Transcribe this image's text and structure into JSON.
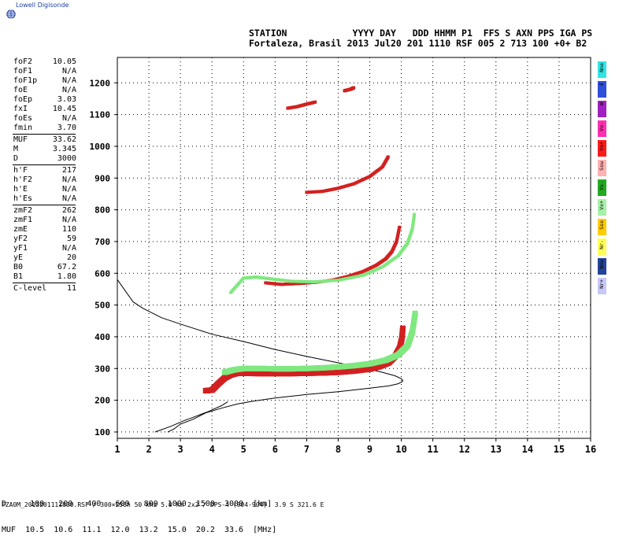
{
  "logo": {
    "text": "Lowell Digisonde",
    "icon": "globe-icon"
  },
  "header": {
    "line1": "STATION            YYYY DAY   DDD HHMM P1  FFS S AXN PPS IGA PS",
    "line2": "Fortaleza, Brasil 2013 Jul20 201 1110 RSF 005 2 713 100 +0+ B2"
  },
  "params": [
    {
      "label": "foF2",
      "value": "10.05"
    },
    {
      "label": "foF1",
      "value": "N/A"
    },
    {
      "label": "foF1p",
      "value": "N/A"
    },
    {
      "label": "foE",
      "value": "N/A"
    },
    {
      "label": "foEp",
      "value": "3.03"
    },
    {
      "label": "fxI",
      "value": "10.45"
    },
    {
      "label": "foEs",
      "value": "N/A"
    },
    {
      "label": "fmin",
      "value": "3.70"
    },
    {
      "sep": true
    },
    {
      "label": "MUF",
      "value": "33.62"
    },
    {
      "label": "M",
      "value": "3.345"
    },
    {
      "label": "D",
      "value": "3000"
    },
    {
      "sep": true
    },
    {
      "label": "h'F",
      "value": "217"
    },
    {
      "label": "h'F2",
      "value": "N/A"
    },
    {
      "label": "h'E",
      "value": "N/A"
    },
    {
      "label": "h'Es",
      "value": "N/A"
    },
    {
      "sep": true
    },
    {
      "label": "zmF2",
      "value": "262"
    },
    {
      "label": "zmF1",
      "value": "N/A"
    },
    {
      "label": "zmE",
      "value": "110"
    },
    {
      "label": "yF2",
      "value": "59"
    },
    {
      "label": "yF1",
      "value": "N/A"
    },
    {
      "label": "yE",
      "value": "20"
    },
    {
      "label": "B0",
      "value": "67.2"
    },
    {
      "label": "B1",
      "value": "1.80"
    },
    {
      "sep": true
    },
    {
      "label": "C-level",
      "value": "11"
    }
  ],
  "legend": [
    {
      "label": "Nne",
      "color": "#33e3e3"
    },
    {
      "label": "E",
      "color": "#2f4fd9"
    },
    {
      "label": "W",
      "color": "#a020c0"
    },
    {
      "label": "Vo-",
      "color": "#ff2fb0"
    },
    {
      "label": "Vo+",
      "color": "#ff1a1a"
    },
    {
      "label": "Ssw",
      "color": "#ffb0b0"
    },
    {
      "label": "Vx-",
      "color": "#22aa22"
    },
    {
      "label": "Vx+",
      "color": "#a8f0a8"
    },
    {
      "label": "Sse",
      "color": "#ffcc00"
    },
    {
      "label": "Nr-",
      "color": "#ffff55"
    },
    {
      "label": "Nnw",
      "color": "#224499"
    },
    {
      "label": "Nr+",
      "color": "#c8c8f8"
    }
  ],
  "chart_data": {
    "type": "scatter",
    "xlim": [
      1,
      16
    ],
    "ylim": [
      80,
      1280
    ],
    "xticks": [
      "1",
      "2",
      "3",
      "4",
      "5",
      "6",
      "7",
      "8",
      "9",
      "10",
      "11",
      "12",
      "13",
      "14",
      "15",
      "16"
    ],
    "yticks": [
      "100",
      "200",
      "300",
      "400",
      "500",
      "600",
      "700",
      "800",
      "900",
      "1000",
      "1100",
      "1200"
    ],
    "grid": true,
    "colors": {
      "o_trace": "#d22020",
      "x_trace": "#7fe87f",
      "profile": "#000000"
    },
    "series": [
      {
        "mode": "O",
        "x": [
          3.8,
          4.0,
          4.2,
          4.4,
          4.6,
          4.8,
          5.0,
          5.5,
          6.0,
          6.5,
          7.0,
          7.5,
          8.0,
          8.5,
          9.0,
          9.3,
          9.6,
          9.8,
          9.95,
          10.02,
          10.05
        ],
        "y": [
          230,
          232,
          252,
          270,
          280,
          285,
          285,
          284,
          284,
          284,
          285,
          286,
          288,
          292,
          298,
          306,
          318,
          338,
          365,
          395,
          430
        ]
      },
      {
        "mode": "X",
        "x": [
          4.4,
          4.7,
          5.0,
          5.5,
          6.0,
          6.5,
          7.0,
          7.5,
          8.0,
          8.5,
          9.0,
          9.5,
          9.9,
          10.2,
          10.35,
          10.45
        ],
        "y": [
          288,
          296,
          300,
          300,
          299,
          299,
          300,
          302,
          305,
          309,
          315,
          326,
          343,
          372,
          415,
          480
        ]
      },
      {
        "mode": "O-2hop",
        "x": [
          5.7,
          6.2,
          6.8,
          7.3,
          7.8,
          8.3,
          8.8,
          9.2,
          9.5,
          9.7,
          9.85,
          9.95
        ],
        "y": [
          570,
          565,
          568,
          572,
          578,
          590,
          606,
          625,
          645,
          668,
          700,
          750
        ]
      },
      {
        "mode": "X-2hop",
        "x": [
          4.6,
          5.0,
          5.4,
          5.9,
          6.5,
          7.2,
          8.0,
          8.8,
          9.4,
          9.9,
          10.2,
          10.35,
          10.42
        ],
        "y": [
          540,
          585,
          588,
          582,
          575,
          573,
          578,
          594,
          620,
          655,
          695,
          740,
          790
        ]
      },
      {
        "mode": "O-3hop",
        "x": [
          7.0,
          7.5,
          8.0,
          8.5,
          9.0,
          9.4,
          9.6
        ],
        "y": [
          855,
          858,
          868,
          882,
          905,
          935,
          970
        ]
      },
      {
        "mode": "O-4hop",
        "x": [
          6.4,
          6.7,
          7.0,
          7.3
        ],
        "y": [
          1120,
          1125,
          1133,
          1140
        ]
      },
      {
        "mode": "O-4hop-b",
        "x": [
          8.2,
          8.4,
          8.5
        ],
        "y": [
          1175,
          1180,
          1185
        ]
      }
    ],
    "profile": {
      "x": [
        2.6,
        2.8,
        3.0,
        3.4,
        3.8,
        4.3,
        4.8,
        5.3,
        6.0,
        7.0,
        8.0,
        9.0,
        9.6,
        9.9,
        10.02,
        10.05,
        10.0,
        9.8,
        9.4,
        8.8,
        8.0,
        7.0,
        6.0,
        5.0,
        4.0,
        3.0,
        2.4,
        1.8,
        1.5,
        1.0
      ],
      "y": [
        100,
        110,
        125,
        140,
        160,
        175,
        188,
        197,
        207,
        218,
        227,
        238,
        245,
        252,
        258,
        262,
        268,
        277,
        288,
        302,
        318,
        338,
        360,
        385,
        408,
        440,
        460,
        490,
        510,
        580
      ]
    },
    "rays": [
      {
        "x": [
          2.2,
          2.7,
          3.1,
          3.5,
          3.9,
          4.3,
          4.5
        ],
        "y": [
          100,
          118,
          135,
          150,
          165,
          183,
          195
        ]
      }
    ],
    "footer": {
      "d_row": "D     100   200   400   600   800  1000  1500  3000  [km]",
      "muf_row": "MUF  10.5  10.6  11.1  12.0  13.2  15.0  20.2  33.6  [MHz]",
      "file_line": "FZA0M_2013201111000.RSF / 300×256h 50 kHz 5.0 km 2x2 / DPS-4 (904-904)  3.9 S 321.6 E"
    }
  }
}
